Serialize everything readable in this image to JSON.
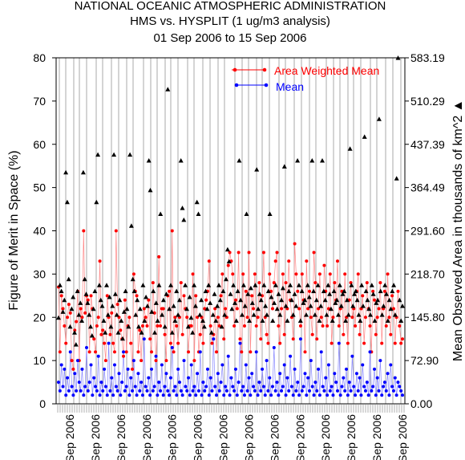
{
  "chart_data": {
    "type": "line",
    "title_lines": [
      "NATIONAL OCEANIC ATMOSPHERIC ADMINISTRATION",
      "HMS vs. HYSPLIT (1 ug/m3 analysis)",
      "01 Sep 2006 to 15 Sep 2006"
    ],
    "ylabel": "Figure of Merit in Space (%)",
    "y2label": "Mean Observed Area in thousands of km^2",
    "y2label_marker": "▲",
    "ylim": [
      0,
      80
    ],
    "y2lim": [
      0,
      583.19
    ],
    "yticks": [
      "0",
      "10",
      "20",
      "30",
      "40",
      "50",
      "60",
      "70",
      "80"
    ],
    "y2ticks": [
      "0.00",
      "72.90",
      "145.80",
      "218.70",
      "291.60",
      "364.49",
      "437.39",
      "510.29",
      "583.19"
    ],
    "xtick_label": "Sep 2006",
    "xtick_count": 14,
    "legend": "top-right",
    "colors": {
      "area_weighted": "#ff0000",
      "area_weighted_line": "#ff8888",
      "mean": "#0000ff",
      "mean_line": "#8888ff",
      "observed_area": "#000000"
    },
    "series": [
      {
        "name": "Area Weighted Mean",
        "values": [
          27,
          12,
          25,
          22,
          18,
          14,
          20,
          23,
          21,
          10,
          8,
          17,
          19,
          26,
          10,
          22,
          20,
          40,
          21,
          25,
          24,
          12,
          25,
          22,
          15,
          12,
          18,
          20,
          33,
          16,
          17,
          14,
          10,
          25,
          20,
          16,
          21,
          14,
          12,
          40,
          23,
          20,
          17,
          15,
          11,
          24,
          12,
          18,
          20,
          14,
          8,
          30,
          26,
          25,
          12,
          17,
          10,
          18,
          22,
          20,
          18,
          24,
          15,
          12,
          28,
          21,
          10,
          18,
          34,
          18,
          22,
          22,
          16,
          10,
          25,
          26,
          14,
          40,
          12,
          20,
          18,
          14,
          20,
          28,
          16,
          25,
          22,
          20,
          12,
          18,
          18,
          30,
          10,
          25,
          20,
          12,
          16,
          20,
          14,
          22,
          24,
          26,
          33,
          18,
          14,
          16,
          22,
          12,
          20,
          18,
          25,
          30,
          15,
          22,
          20,
          32,
          35,
          33,
          30,
          18,
          24,
          22,
          35,
          15,
          12,
          30,
          18,
          26,
          20,
          35,
          12,
          25,
          22,
          30,
          18,
          20,
          28,
          15,
          25,
          35,
          20,
          16,
          14,
          30,
          26,
          22,
          28,
          33,
          35,
          18,
          14,
          22,
          30,
          16,
          28,
          22,
          33,
          24,
          20,
          15,
          37,
          30,
          26,
          22,
          18,
          30,
          24,
          12,
          33,
          22,
          26,
          20,
          16,
          35,
          28,
          15,
          22,
          30,
          20,
          18,
          32,
          26,
          18,
          22,
          30,
          14,
          20,
          28,
          24,
          33,
          18,
          22,
          26,
          16,
          30,
          20,
          14,
          24,
          28,
          20,
          22,
          18,
          26,
          30,
          16,
          22,
          25,
          14,
          20,
          28,
          22,
          18,
          12,
          26,
          24,
          16,
          20,
          22,
          28,
          14,
          22,
          26,
          18,
          30,
          20,
          16,
          25,
          22,
          14,
          20,
          26,
          18,
          14,
          15
        ],
        "x_note": "points plotted at equal spacing across the 01–15 Sep 2006 period"
      },
      {
        "name": "Mean",
        "values": [
          5,
          3,
          9,
          4,
          8,
          2,
          6,
          3,
          12,
          4,
          2,
          7,
          3,
          10,
          5,
          3,
          8,
          2,
          4,
          13,
          3,
          5,
          9,
          2,
          6,
          4,
          3,
          11,
          2,
          5,
          3,
          8,
          4,
          2,
          14,
          3,
          6,
          2,
          9,
          4,
          3,
          7,
          2,
          5,
          12,
          3,
          4,
          8,
          2,
          6,
          3,
          10,
          4,
          2,
          7,
          3,
          5,
          2,
          15,
          4,
          3,
          6,
          2,
          8,
          3,
          4,
          11,
          2,
          5,
          3,
          9,
          2,
          4,
          7,
          3,
          2,
          6,
          13,
          3,
          4,
          2,
          8,
          5,
          3,
          2,
          10,
          4,
          3,
          6,
          2,
          9,
          3,
          4,
          2,
          7,
          3,
          12,
          2,
          5,
          3,
          4,
          8,
          2,
          6,
          3,
          15,
          4,
          2,
          7,
          3,
          5,
          9,
          2,
          4,
          3,
          11,
          2,
          6,
          4,
          3,
          8,
          2,
          5,
          14,
          3,
          4,
          2,
          9,
          3,
          6,
          2,
          7,
          4,
          3,
          12,
          2,
          5,
          3,
          8,
          4,
          2,
          10,
          3,
          6,
          2,
          4,
          13,
          3,
          5,
          2,
          7,
          3,
          4,
          9,
          2,
          6,
          3,
          11,
          4,
          2,
          8,
          3,
          5,
          2,
          15,
          3,
          4,
          7,
          2,
          6,
          3,
          10,
          4,
          2,
          5,
          3,
          8,
          2,
          12,
          4,
          3,
          6,
          2,
          9,
          3,
          4,
          2,
          7,
          5,
          3,
          14,
          2,
          4,
          6,
          3,
          8,
          2,
          5,
          3,
          11,
          4,
          2,
          7,
          3,
          6,
          2,
          9,
          4,
          3,
          5,
          2,
          12,
          3,
          4,
          8,
          2,
          6,
          3,
          10,
          2,
          4,
          5,
          3,
          7,
          2,
          9,
          4,
          3,
          6,
          2,
          5,
          4,
          3,
          2
        ]
      },
      {
        "name": "Mean Observed Area",
        "axis": "right",
        "values": [
          145,
          200,
          190,
          155,
          175,
          390,
          340,
          210,
          130,
          160,
          180,
          120,
          100,
          190,
          150,
          170,
          140,
          390,
          210,
          185,
          170,
          150,
          130,
          115,
          160,
          190,
          340,
          420,
          200,
          175,
          165,
          140,
          120,
          200,
          150,
          180,
          130,
          165,
          420,
          185,
          150,
          120,
          175,
          140,
          110,
          155,
          190,
          160,
          130,
          420,
          300,
          210,
          190,
          150,
          175,
          130,
          160,
          120,
          200,
          140,
          180,
          165,
          410,
          360,
          155,
          190,
          120,
          170,
          140,
          200,
          320,
          150,
          175,
          130,
          185,
          530,
          160,
          200,
          120,
          165,
          140,
          190,
          150,
          175,
          410,
          330,
          310,
          200,
          160,
          130,
          180,
          145,
          120,
          200,
          165,
          340,
          320,
          150,
          175,
          140,
          130,
          190,
          160,
          200,
          170,
          120,
          150,
          185,
          140,
          165,
          200,
          175,
          130,
          190,
          150,
          210,
          260,
          240,
          185,
          160,
          200,
          170,
          140,
          190,
          410,
          175,
          150,
          200,
          165,
          320,
          185,
          140,
          195,
          170,
          150,
          200,
          395,
          160,
          185,
          175,
          140,
          200,
          165,
          150,
          190,
          320,
          180,
          140,
          170,
          200,
          160,
          185,
          150,
          175,
          195,
          400,
          165,
          140,
          190,
          200,
          175,
          150,
          185,
          165,
          410,
          200,
          140,
          190,
          170,
          175,
          150,
          200,
          180,
          165,
          410,
          190,
          150,
          175,
          200,
          140,
          165,
          410,
          190,
          175,
          150,
          200,
          185,
          160,
          140,
          190,
          170,
          175,
          150,
          200,
          165,
          185,
          190,
          140,
          175,
          150,
          430,
          200,
          165,
          185,
          190,
          175,
          150,
          140,
          200,
          165,
          450,
          190,
          175,
          160,
          150,
          200,
          185,
          140,
          170,
          175,
          480,
          190,
          150,
          165,
          200,
          185,
          140,
          175,
          160,
          190,
          200,
          150,
          380,
          583,
          175,
          140,
          165
        ]
      }
    ]
  }
}
